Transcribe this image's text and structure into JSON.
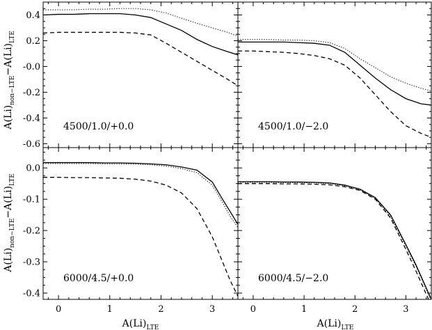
{
  "chart_data": {
    "type": "line",
    "layout": "2x2 grid, shared x axis per column, shared y axis per row",
    "xlabel_main": "A(Li)",
    "xlabel_sub": "LTE",
    "ylabel_parts": [
      "A(Li)",
      "non−LTE",
      "−A(Li)",
      "LTE"
    ],
    "xlim": [
      -0.3,
      3.5
    ],
    "xticks": [
      0,
      1,
      2,
      3
    ],
    "xtick_labels": [
      "0",
      "1",
      "2",
      "3"
    ],
    "rows": [
      {
        "ylim": [
          -0.63,
          0.5
        ],
        "yticks": [
          0.4,
          0.2,
          0.0,
          -0.2,
          -0.4,
          -0.6
        ],
        "ytick_labels": [
          "0.4",
          "0.2",
          "-0.0",
          "-0.2",
          "-0.4",
          "-0.6"
        ]
      },
      {
        "ylim": [
          -0.42,
          0.065
        ],
        "yticks": [
          0.0,
          -0.1,
          -0.2,
          -0.3,
          -0.4
        ],
        "ytick_labels": [
          "0.0",
          "-0.1",
          "-0.2",
          "-0.3",
          "-0.4"
        ]
      }
    ],
    "panels": [
      {
        "label": "4500/1.0/+0.0",
        "row": 0,
        "col": 0,
        "x": [
          -0.3,
          0.0,
          0.3,
          0.6,
          0.9,
          1.2,
          1.5,
          1.8,
          2.1,
          2.4,
          2.7,
          3.0,
          3.3,
          3.5
        ],
        "series": [
          {
            "style": "solid",
            "values": [
              0.4,
              0.405,
              0.405,
              0.41,
              0.41,
              0.41,
              0.4,
              0.38,
              0.33,
              0.28,
              0.21,
              0.155,
              0.115,
              0.09
            ]
          },
          {
            "style": "dotted",
            "values": [
              0.44,
              0.44,
              0.44,
              0.445,
              0.445,
              0.45,
              0.45,
              0.44,
              0.415,
              0.375,
              0.335,
              0.3,
              0.265,
              0.235
            ]
          },
          {
            "style": "dashed",
            "values": [
              0.26,
              0.265,
              0.265,
              0.265,
              0.265,
              0.265,
              0.26,
              0.245,
              0.18,
              0.11,
              0.04,
              -0.03,
              -0.1,
              -0.15
            ]
          }
        ]
      },
      {
        "label": "4500/1.0/−2.0",
        "row": 0,
        "col": 1,
        "x": [
          -0.3,
          0.0,
          0.3,
          0.6,
          0.9,
          1.2,
          1.5,
          1.8,
          2.1,
          2.4,
          2.7,
          3.0,
          3.3,
          3.5
        ],
        "series": [
          {
            "style": "solid",
            "values": [
              0.19,
              0.19,
              0.19,
              0.19,
              0.185,
              0.18,
              0.165,
              0.11,
              0.01,
              -0.09,
              -0.18,
              -0.25,
              -0.29,
              -0.3
            ]
          },
          {
            "style": "dotted",
            "values": [
              0.21,
              0.21,
              0.21,
              0.205,
              0.205,
              0.2,
              0.185,
              0.14,
              0.06,
              -0.01,
              -0.08,
              -0.13,
              -0.17,
              -0.19
            ]
          },
          {
            "style": "dashed",
            "values": [
              0.12,
              0.12,
              0.115,
              0.11,
              0.1,
              0.085,
              0.06,
              0.01,
              -0.09,
              -0.22,
              -0.35,
              -0.46,
              -0.52,
              -0.55
            ]
          }
        ]
      },
      {
        "label": "6000/4.5/+0.0",
        "row": 1,
        "col": 0,
        "x": [
          -0.3,
          0.0,
          0.3,
          0.6,
          0.9,
          1.2,
          1.5,
          1.8,
          2.1,
          2.4,
          2.7,
          3.0,
          3.2,
          3.35,
          3.5
        ],
        "series": [
          {
            "style": "solid",
            "values": [
              0.017,
              0.017,
              0.017,
              0.017,
              0.016,
              0.016,
              0.015,
              0.013,
              0.01,
              0.003,
              -0.007,
              -0.045,
              -0.1,
              -0.14,
              -0.18
            ]
          },
          {
            "style": "dotted",
            "values": [
              0.014,
              0.014,
              0.014,
              0.014,
              0.013,
              0.013,
              0.012,
              0.01,
              0.006,
              -0.002,
              -0.015,
              -0.055,
              -0.11,
              -0.155,
              -0.19
            ]
          },
          {
            "style": "dashed",
            "values": [
              -0.03,
              -0.03,
              -0.031,
              -0.031,
              -0.032,
              -0.033,
              -0.036,
              -0.042,
              -0.055,
              -0.08,
              -0.13,
              -0.22,
              -0.3,
              -0.36,
              -0.41
            ]
          }
        ]
      },
      {
        "label": "6000/4.5/−2.0",
        "row": 1,
        "col": 1,
        "x": [
          -0.3,
          0.0,
          0.3,
          0.6,
          0.9,
          1.2,
          1.5,
          1.8,
          2.1,
          2.4,
          2.7,
          3.0,
          3.2,
          3.35,
          3.5
        ],
        "series": [
          {
            "style": "solid",
            "values": [
              -0.044,
              -0.044,
              -0.044,
              -0.045,
              -0.045,
              -0.046,
              -0.048,
              -0.055,
              -0.068,
              -0.095,
              -0.15,
              -0.245,
              -0.31,
              -0.365,
              -0.42
            ]
          },
          {
            "style": "dotted",
            "values": [
              -0.046,
              -0.046,
              -0.046,
              -0.047,
              -0.047,
              -0.048,
              -0.05,
              -0.057,
              -0.07,
              -0.098,
              -0.155,
              -0.25,
              -0.315,
              -0.37,
              -0.425
            ]
          },
          {
            "style": "dashed",
            "values": [
              -0.05,
              -0.05,
              -0.05,
              -0.051,
              -0.051,
              -0.052,
              -0.054,
              -0.06,
              -0.072,
              -0.1,
              -0.16,
              -0.26,
              -0.33,
              -0.385,
              -0.44
            ]
          }
        ]
      }
    ]
  }
}
